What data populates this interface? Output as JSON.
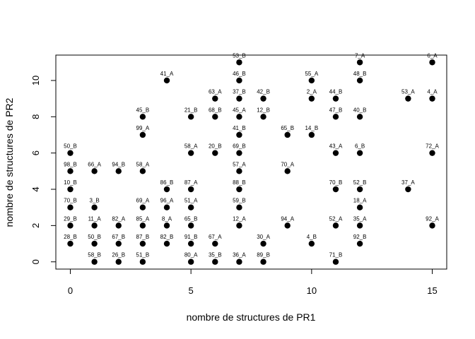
{
  "chart_data": {
    "type": "scatter",
    "xlabel": "nombre de structures de PR1",
    "ylabel": "nombre de structures de PR2",
    "xlim": [
      -0.6,
      15.6
    ],
    "ylim": [
      -0.4,
      11.4
    ],
    "x_ticks": [
      0,
      5,
      10,
      15
    ],
    "y_ticks": [
      0,
      2,
      4,
      6,
      8,
      10
    ],
    "grid": false,
    "points": [
      {
        "x": 7,
        "y": 11,
        "label": "53_B"
      },
      {
        "x": 12,
        "y": 11,
        "label": "7_A"
      },
      {
        "x": 15,
        "y": 11,
        "label": "6_A"
      },
      {
        "x": 4,
        "y": 10,
        "label": "41_A"
      },
      {
        "x": 7,
        "y": 10,
        "label": "46_B"
      },
      {
        "x": 10,
        "y": 10,
        "label": "55_A"
      },
      {
        "x": 12,
        "y": 10,
        "label": "48_B"
      },
      {
        "x": 6,
        "y": 9,
        "label": "63_A"
      },
      {
        "x": 7,
        "y": 9,
        "label": "37_B"
      },
      {
        "x": 8,
        "y": 9,
        "label": "42_B"
      },
      {
        "x": 10,
        "y": 9,
        "label": "2_A"
      },
      {
        "x": 11,
        "y": 9,
        "label": "44_B"
      },
      {
        "x": 14,
        "y": 9,
        "label": "53_A"
      },
      {
        "x": 15,
        "y": 9,
        "label": "4_A"
      },
      {
        "x": 3,
        "y": 8,
        "label": "45_B"
      },
      {
        "x": 5,
        "y": 8,
        "label": "21_B"
      },
      {
        "x": 6,
        "y": 8,
        "label": "68_B"
      },
      {
        "x": 7,
        "y": 8,
        "label": "45_A"
      },
      {
        "x": 8,
        "y": 8,
        "label": "12_B"
      },
      {
        "x": 11,
        "y": 8,
        "label": "47_B"
      },
      {
        "x": 12,
        "y": 8,
        "label": "40_B"
      },
      {
        "x": 3,
        "y": 7,
        "label": "99_A"
      },
      {
        "x": 7,
        "y": 7,
        "label": "41_B"
      },
      {
        "x": 9,
        "y": 7,
        "label": "65_B"
      },
      {
        "x": 10,
        "y": 7,
        "label": "14_B"
      },
      {
        "x": 0,
        "y": 6,
        "label": "50_B"
      },
      {
        "x": 5,
        "y": 6,
        "label": "58_A"
      },
      {
        "x": 6,
        "y": 6,
        "label": "20_B"
      },
      {
        "x": 7,
        "y": 6,
        "label": "69_B"
      },
      {
        "x": 11,
        "y": 6,
        "label": "43_A"
      },
      {
        "x": 12,
        "y": 6,
        "label": "6_B"
      },
      {
        "x": 15,
        "y": 6,
        "label": "72_A"
      },
      {
        "x": 0,
        "y": 5,
        "label": "98_B"
      },
      {
        "x": 1,
        "y": 5,
        "label": "66_A"
      },
      {
        "x": 2,
        "y": 5,
        "label": "94_B"
      },
      {
        "x": 3,
        "y": 5,
        "label": "58_A"
      },
      {
        "x": 7,
        "y": 5,
        "label": "57_A"
      },
      {
        "x": 9,
        "y": 5,
        "label": "70_A"
      },
      {
        "x": 0,
        "y": 4,
        "label": "10_B"
      },
      {
        "x": 4,
        "y": 4,
        "label": "86_B"
      },
      {
        "x": 5,
        "y": 4,
        "label": "87_A"
      },
      {
        "x": 7,
        "y": 4,
        "label": "88_B"
      },
      {
        "x": 11,
        "y": 4,
        "label": "70_B"
      },
      {
        "x": 12,
        "y": 4,
        "label": "52_B"
      },
      {
        "x": 14,
        "y": 4,
        "label": "37_A"
      },
      {
        "x": 0,
        "y": 3,
        "label": "70_B"
      },
      {
        "x": 1,
        "y": 3,
        "label": "3_B"
      },
      {
        "x": 3,
        "y": 3,
        "label": "69_A"
      },
      {
        "x": 4,
        "y": 3,
        "label": "96_A"
      },
      {
        "x": 5,
        "y": 3,
        "label": "51_A"
      },
      {
        "x": 7,
        "y": 3,
        "label": "59_B"
      },
      {
        "x": 12,
        "y": 3,
        "label": "18_A"
      },
      {
        "x": 0,
        "y": 2,
        "label": "29_B"
      },
      {
        "x": 1,
        "y": 2,
        "label": "11_A"
      },
      {
        "x": 2,
        "y": 2,
        "label": "82_A"
      },
      {
        "x": 3,
        "y": 2,
        "label": "85_A"
      },
      {
        "x": 4,
        "y": 2,
        "label": "8_A"
      },
      {
        "x": 5,
        "y": 2,
        "label": "65_B"
      },
      {
        "x": 7,
        "y": 2,
        "label": "12_A"
      },
      {
        "x": 9,
        "y": 2,
        "label": "94_A"
      },
      {
        "x": 11,
        "y": 2,
        "label": "52_A"
      },
      {
        "x": 12,
        "y": 2,
        "label": "35_A"
      },
      {
        "x": 15,
        "y": 2,
        "label": "92_A"
      },
      {
        "x": 0,
        "y": 1,
        "label": "28_B"
      },
      {
        "x": 1,
        "y": 1,
        "label": "50_B"
      },
      {
        "x": 2,
        "y": 1,
        "label": "67_B"
      },
      {
        "x": 3,
        "y": 1,
        "label": "87_B"
      },
      {
        "x": 4,
        "y": 1,
        "label": "82_B"
      },
      {
        "x": 5,
        "y": 1,
        "label": "91_B"
      },
      {
        "x": 6,
        "y": 1,
        "label": "67_A"
      },
      {
        "x": 8,
        "y": 1,
        "label": "30_A"
      },
      {
        "x": 10,
        "y": 1,
        "label": "4_B"
      },
      {
        "x": 12,
        "y": 1,
        "label": "92_B"
      },
      {
        "x": 1,
        "y": 0,
        "label": "58_B"
      },
      {
        "x": 2,
        "y": 0,
        "label": "26_B"
      },
      {
        "x": 3,
        "y": 0,
        "label": "51_B"
      },
      {
        "x": 5,
        "y": 0,
        "label": "80_A"
      },
      {
        "x": 6,
        "y": 0,
        "label": "35_B"
      },
      {
        "x": 7,
        "y": 0,
        "label": "36_A"
      },
      {
        "x": 8,
        "y": 0,
        "label": "89_B"
      },
      {
        "x": 11,
        "y": 0,
        "label": "71_B"
      }
    ]
  }
}
